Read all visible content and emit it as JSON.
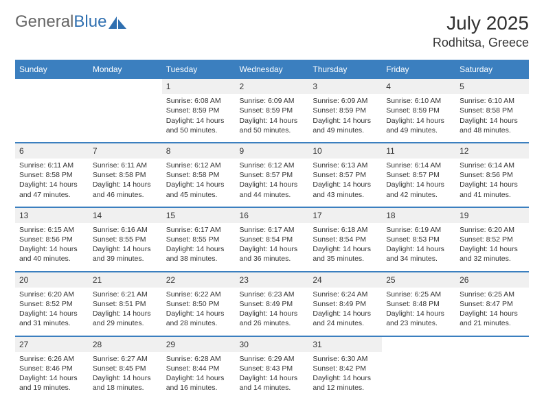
{
  "brand": {
    "part1": "General",
    "part2": "Blue"
  },
  "title": "July 2025",
  "location": "Rodhitsa, Greece",
  "colors": {
    "header_bg": "#3b7fbf",
    "header_fg": "#ffffff",
    "daynum_bg": "#f0f0f0",
    "rule": "#3b7fbf",
    "text": "#333333",
    "logo_gray": "#666666",
    "logo_blue": "#2f6fb0"
  },
  "typography": {
    "title_size_pt": 21,
    "location_size_pt": 14,
    "dayheader_size_pt": 9,
    "body_size_pt": 8
  },
  "layout": {
    "cols": 7,
    "rows": 5
  },
  "day_headers": [
    "Sunday",
    "Monday",
    "Tuesday",
    "Wednesday",
    "Thursday",
    "Friday",
    "Saturday"
  ],
  "weeks": [
    [
      null,
      null,
      {
        "n": "1",
        "sr": "Sunrise: 6:08 AM",
        "ss": "Sunset: 8:59 PM",
        "d1": "Daylight: 14 hours",
        "d2": "and 50 minutes."
      },
      {
        "n": "2",
        "sr": "Sunrise: 6:09 AM",
        "ss": "Sunset: 8:59 PM",
        "d1": "Daylight: 14 hours",
        "d2": "and 50 minutes."
      },
      {
        "n": "3",
        "sr": "Sunrise: 6:09 AM",
        "ss": "Sunset: 8:59 PM",
        "d1": "Daylight: 14 hours",
        "d2": "and 49 minutes."
      },
      {
        "n": "4",
        "sr": "Sunrise: 6:10 AM",
        "ss": "Sunset: 8:59 PM",
        "d1": "Daylight: 14 hours",
        "d2": "and 49 minutes."
      },
      {
        "n": "5",
        "sr": "Sunrise: 6:10 AM",
        "ss": "Sunset: 8:58 PM",
        "d1": "Daylight: 14 hours",
        "d2": "and 48 minutes."
      }
    ],
    [
      {
        "n": "6",
        "sr": "Sunrise: 6:11 AM",
        "ss": "Sunset: 8:58 PM",
        "d1": "Daylight: 14 hours",
        "d2": "and 47 minutes."
      },
      {
        "n": "7",
        "sr": "Sunrise: 6:11 AM",
        "ss": "Sunset: 8:58 PM",
        "d1": "Daylight: 14 hours",
        "d2": "and 46 minutes."
      },
      {
        "n": "8",
        "sr": "Sunrise: 6:12 AM",
        "ss": "Sunset: 8:58 PM",
        "d1": "Daylight: 14 hours",
        "d2": "and 45 minutes."
      },
      {
        "n": "9",
        "sr": "Sunrise: 6:12 AM",
        "ss": "Sunset: 8:57 PM",
        "d1": "Daylight: 14 hours",
        "d2": "and 44 minutes."
      },
      {
        "n": "10",
        "sr": "Sunrise: 6:13 AM",
        "ss": "Sunset: 8:57 PM",
        "d1": "Daylight: 14 hours",
        "d2": "and 43 minutes."
      },
      {
        "n": "11",
        "sr": "Sunrise: 6:14 AM",
        "ss": "Sunset: 8:57 PM",
        "d1": "Daylight: 14 hours",
        "d2": "and 42 minutes."
      },
      {
        "n": "12",
        "sr": "Sunrise: 6:14 AM",
        "ss": "Sunset: 8:56 PM",
        "d1": "Daylight: 14 hours",
        "d2": "and 41 minutes."
      }
    ],
    [
      {
        "n": "13",
        "sr": "Sunrise: 6:15 AM",
        "ss": "Sunset: 8:56 PM",
        "d1": "Daylight: 14 hours",
        "d2": "and 40 minutes."
      },
      {
        "n": "14",
        "sr": "Sunrise: 6:16 AM",
        "ss": "Sunset: 8:55 PM",
        "d1": "Daylight: 14 hours",
        "d2": "and 39 minutes."
      },
      {
        "n": "15",
        "sr": "Sunrise: 6:17 AM",
        "ss": "Sunset: 8:55 PM",
        "d1": "Daylight: 14 hours",
        "d2": "and 38 minutes."
      },
      {
        "n": "16",
        "sr": "Sunrise: 6:17 AM",
        "ss": "Sunset: 8:54 PM",
        "d1": "Daylight: 14 hours",
        "d2": "and 36 minutes."
      },
      {
        "n": "17",
        "sr": "Sunrise: 6:18 AM",
        "ss": "Sunset: 8:54 PM",
        "d1": "Daylight: 14 hours",
        "d2": "and 35 minutes."
      },
      {
        "n": "18",
        "sr": "Sunrise: 6:19 AM",
        "ss": "Sunset: 8:53 PM",
        "d1": "Daylight: 14 hours",
        "d2": "and 34 minutes."
      },
      {
        "n": "19",
        "sr": "Sunrise: 6:20 AM",
        "ss": "Sunset: 8:52 PM",
        "d1": "Daylight: 14 hours",
        "d2": "and 32 minutes."
      }
    ],
    [
      {
        "n": "20",
        "sr": "Sunrise: 6:20 AM",
        "ss": "Sunset: 8:52 PM",
        "d1": "Daylight: 14 hours",
        "d2": "and 31 minutes."
      },
      {
        "n": "21",
        "sr": "Sunrise: 6:21 AM",
        "ss": "Sunset: 8:51 PM",
        "d1": "Daylight: 14 hours",
        "d2": "and 29 minutes."
      },
      {
        "n": "22",
        "sr": "Sunrise: 6:22 AM",
        "ss": "Sunset: 8:50 PM",
        "d1": "Daylight: 14 hours",
        "d2": "and 28 minutes."
      },
      {
        "n": "23",
        "sr": "Sunrise: 6:23 AM",
        "ss": "Sunset: 8:49 PM",
        "d1": "Daylight: 14 hours",
        "d2": "and 26 minutes."
      },
      {
        "n": "24",
        "sr": "Sunrise: 6:24 AM",
        "ss": "Sunset: 8:49 PM",
        "d1": "Daylight: 14 hours",
        "d2": "and 24 minutes."
      },
      {
        "n": "25",
        "sr": "Sunrise: 6:25 AM",
        "ss": "Sunset: 8:48 PM",
        "d1": "Daylight: 14 hours",
        "d2": "and 23 minutes."
      },
      {
        "n": "26",
        "sr": "Sunrise: 6:25 AM",
        "ss": "Sunset: 8:47 PM",
        "d1": "Daylight: 14 hours",
        "d2": "and 21 minutes."
      }
    ],
    [
      {
        "n": "27",
        "sr": "Sunrise: 6:26 AM",
        "ss": "Sunset: 8:46 PM",
        "d1": "Daylight: 14 hours",
        "d2": "and 19 minutes."
      },
      {
        "n": "28",
        "sr": "Sunrise: 6:27 AM",
        "ss": "Sunset: 8:45 PM",
        "d1": "Daylight: 14 hours",
        "d2": "and 18 minutes."
      },
      {
        "n": "29",
        "sr": "Sunrise: 6:28 AM",
        "ss": "Sunset: 8:44 PM",
        "d1": "Daylight: 14 hours",
        "d2": "and 16 minutes."
      },
      {
        "n": "30",
        "sr": "Sunrise: 6:29 AM",
        "ss": "Sunset: 8:43 PM",
        "d1": "Daylight: 14 hours",
        "d2": "and 14 minutes."
      },
      {
        "n": "31",
        "sr": "Sunrise: 6:30 AM",
        "ss": "Sunset: 8:42 PM",
        "d1": "Daylight: 14 hours",
        "d2": "and 12 minutes."
      },
      null,
      null
    ]
  ]
}
